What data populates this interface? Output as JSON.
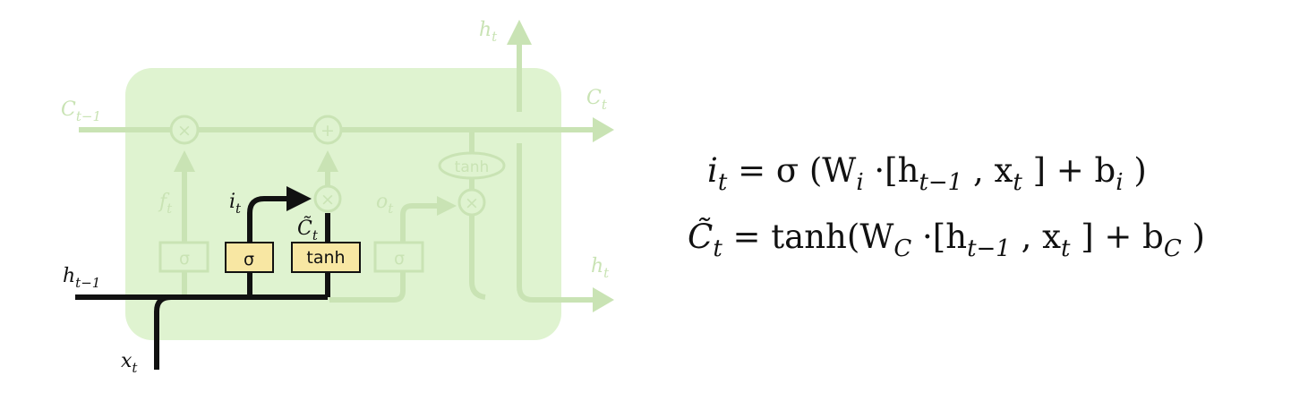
{
  "labels": {
    "c_prev": "C",
    "c_prev_sub": "t−1",
    "c_next": "C",
    "c_next_sub": "t",
    "h_top": "h",
    "h_top_sub": "t",
    "h_out": "h",
    "h_out_sub": "t",
    "h_prev": "h",
    "h_prev_sub": "t−1",
    "x_in": "x",
    "x_in_sub": "t",
    "f": "f",
    "f_sub": "t",
    "i": "i",
    "i_sub": "t",
    "o": "o",
    "o_sub": "t",
    "ctilde": "C̃",
    "ctilde_sub": "t"
  },
  "gates": {
    "forget": "σ",
    "input": "σ",
    "candidate": "tanh",
    "output": "σ",
    "cell_tanh": "tanh"
  },
  "ops": {
    "mult_forget": "×",
    "add_cell": "+",
    "mult_input": "×",
    "mult_output": "×"
  },
  "equations": {
    "eq1_lhs": "i",
    "eq1_lhs_sub": "t",
    "eq1_rhs": "= σ (W",
    "eq1_w_sub": "i",
    "eq1_mid": "·[h",
    "eq1_h_sub": "t−1",
    "eq1_comma": ", x",
    "eq1_x_sub": "t",
    "eq1_plus": "]  +  b",
    "eq1_b_sub": "i",
    "eq1_close": ")",
    "eq2_lhs": "C̃",
    "eq2_lhs_sub": "t",
    "eq2_rhs": "= tanh(W",
    "eq2_w_sub": "C",
    "eq2_mid": "·[h",
    "eq2_h_sub": "t−1",
    "eq2_comma": ", x",
    "eq2_x_sub": "t",
    "eq2_plus": "]  +  b",
    "eq2_b_sub": "C",
    "eq2_close": ")"
  },
  "colors": {
    "cell_bg": "#dff3d0",
    "faint_line": "#c9e3b4",
    "highlight_box": "#f8e7a3",
    "dark": "#111111"
  }
}
